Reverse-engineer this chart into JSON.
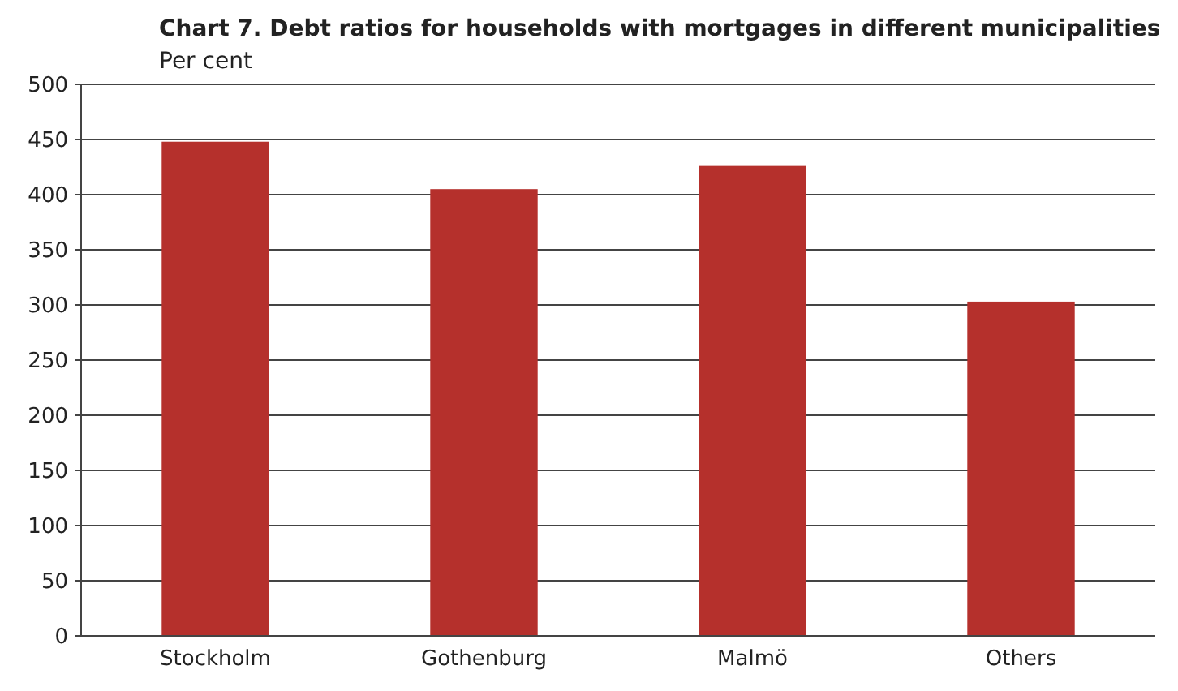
{
  "chart_data": {
    "type": "bar",
    "title": "Chart 7. Debt ratios for households with mortgages in different municipalities",
    "ylabel": "Per cent",
    "categories": [
      "Stockholm",
      "Gothenburg",
      "Malmö",
      "Others"
    ],
    "values": [
      448,
      405,
      426,
      303
    ],
    "color": "#b5302c",
    "ylim": [
      0,
      500
    ],
    "yticks": [
      0,
      50,
      100,
      150,
      200,
      250,
      300,
      350,
      400,
      450,
      500
    ],
    "grid": "y"
  }
}
